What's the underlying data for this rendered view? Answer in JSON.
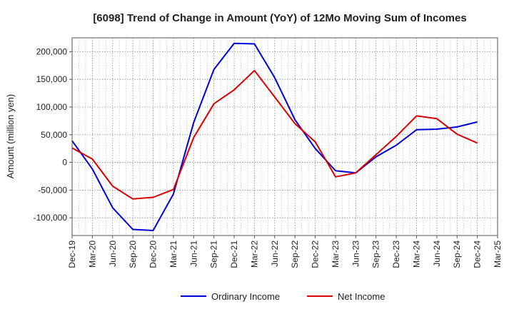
{
  "chart_data": {
    "type": "line",
    "title": "[6098]  Trend of Change in Amount (YoY) of 12Mo Moving Sum of Incomes",
    "xlabel": "",
    "ylabel": "Amount (million yen)",
    "categories": [
      "Dec-19",
      "Mar-20",
      "Jun-20",
      "Sep-20",
      "Dec-20",
      "Mar-21",
      "Jun-21",
      "Sep-21",
      "Dec-21",
      "Mar-22",
      "Jun-22",
      "Sep-22",
      "Dec-22",
      "Mar-23",
      "Jun-23",
      "Sep-23",
      "Dec-23",
      "Mar-24",
      "Jun-24",
      "Sep-24",
      "Dec-24",
      "Mar-25"
    ],
    "ylim": [
      -132000,
      225000
    ],
    "yticks": [
      -100000,
      -50000,
      0,
      50000,
      100000,
      150000,
      200000
    ],
    "ytick_labels": [
      "-100,000",
      "-50,000",
      "0",
      "50,000",
      "100,000",
      "150,000",
      "200,000"
    ],
    "grid": true,
    "legend_position": "bottom-center",
    "series": [
      {
        "name": "Ordinary Income",
        "color": "#0000dd",
        "values": [
          39000,
          -12000,
          -82000,
          -121000,
          -123000,
          -57000,
          72000,
          168000,
          215000,
          214000,
          153000,
          77000,
          25000,
          -15000,
          -19000,
          10000,
          31000,
          59000,
          60000,
          64000,
          73000,
          null
        ]
      },
      {
        "name": "Net Income",
        "color": "#dd0000",
        "values": [
          26000,
          6000,
          -43000,
          -66000,
          -63000,
          -49000,
          45000,
          106000,
          131000,
          166000,
          118000,
          70000,
          37000,
          -26000,
          -19000,
          14000,
          47000,
          84000,
          79000,
          51000,
          35000,
          null
        ]
      }
    ]
  }
}
